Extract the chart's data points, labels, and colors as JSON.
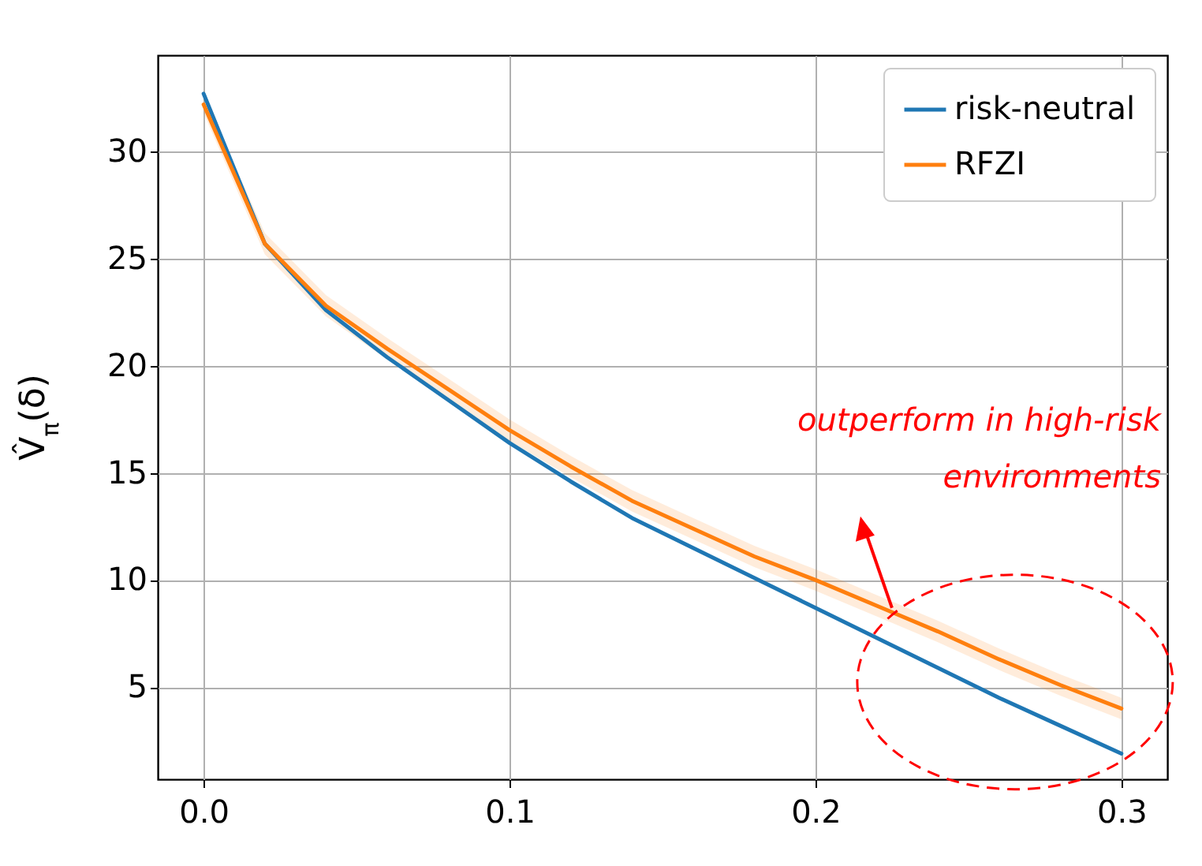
{
  "chart_data": {
    "type": "line",
    "ylabel": "V̂$_{π}$(δ)",
    "x": [
      0,
      0.02,
      0.04,
      0.06,
      0.08,
      0.1,
      0.12,
      0.14,
      0.16,
      0.18,
      0.2,
      0.22,
      0.24,
      0.26,
      0.28,
      0.3
    ],
    "series": [
      {
        "name": "risk-neutral",
        "color": "#1f77b4",
        "values": [
          32.7,
          25.7,
          22.6,
          20.4,
          18.4,
          16.4,
          14.6,
          12.9,
          11.5,
          10.1,
          8.7,
          7.3,
          5.9,
          4.5,
          3.2,
          1.9
        ]
      },
      {
        "name": "RFZI",
        "color": "#ff7f0e",
        "values": [
          32.2,
          25.7,
          22.8,
          20.8,
          18.9,
          17.0,
          15.3,
          13.7,
          12.4,
          11.1,
          10.0,
          8.8,
          7.6,
          6.3,
          5.1,
          4.0
        ],
        "lower": [
          31.8,
          25.2,
          22.3,
          20.3,
          18.4,
          16.5,
          14.8,
          13.2,
          11.9,
          10.6,
          9.5,
          8.3,
          7.1,
          5.8,
          4.6,
          3.5
        ],
        "upper": [
          32.6,
          26.2,
          23.3,
          21.3,
          19.4,
          17.5,
          15.8,
          14.2,
          12.9,
          11.6,
          10.5,
          9.3,
          8.1,
          6.8,
          5.6,
          4.5
        ]
      }
    ],
    "xlim": [
      -0.015,
      0.315
    ],
    "xticks": [
      {
        "value": 0,
        "label": "0.0"
      },
      {
        "value": 0.1,
        "label": "0.1"
      },
      {
        "value": 0.2,
        "label": "0.2"
      },
      {
        "value": 0.3,
        "label": "0.3"
      }
    ],
    "ylim": [
      0.7,
      34.5
    ],
    "yticks": [
      5,
      10,
      15,
      20,
      25,
      30
    ],
    "grid": true,
    "legend": "top right",
    "annotations": [
      {
        "text": "outperform in high-risk\nenvironments",
        "x": 0.225,
        "y": 8.7
      }
    ]
  }
}
